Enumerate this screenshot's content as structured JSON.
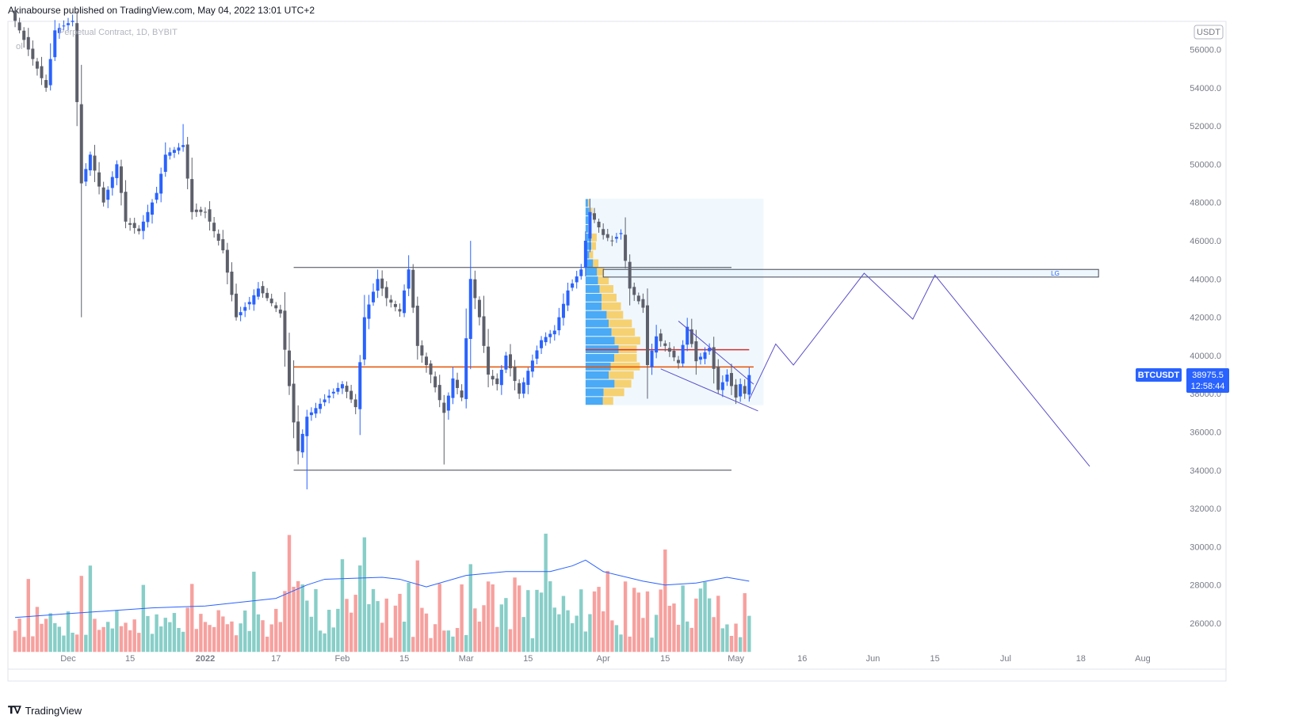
{
  "header": {
    "published_text": "Akinabourse published on TradingView.com, May 04, 2022 13:01 UTC+2"
  },
  "footer": {
    "brand": "TradingView"
  },
  "symbol_legend": {
    "text": "Perpetual Contract, 1D, BYBIT",
    "fragment": "ol"
  },
  "currency_badge": "USDT",
  "price_tag": {
    "symbol": "BTCUSDT",
    "price": "38975.5",
    "countdown": "12:58:44",
    "color": "#2962ff"
  },
  "zone_label": "LG",
  "colors": {
    "up_candle": "#2962ff",
    "down_candle": "#5d606b",
    "volume_up": "#26a69a",
    "volume_down": "#ef5350",
    "volume_ma": "#2962ff",
    "projection": "#5b4fc9",
    "orange_line": "#e65100",
    "red_line": "#d32f2f",
    "grey_line": "#434651",
    "profile_blue": "#2196f3",
    "profile_yellow": "#f7c74f"
  },
  "chart_data": {
    "type": "candlestick",
    "title": "Perpetual Contract, 1D, BYBIT",
    "x_axis": {
      "labels": [
        "Dec",
        "15",
        "2022",
        "17",
        "Feb",
        "15",
        "Mar",
        "15",
        "Apr",
        "15",
        "May",
        "16",
        "Jun",
        "15",
        "Jul",
        "18",
        "Aug"
      ],
      "label_dates": [
        "2021-12-01",
        "2021-12-15",
        "2022-01-01",
        "2022-01-17",
        "2022-02-01",
        "2022-02-15",
        "2022-03-01",
        "2022-03-15",
        "2022-04-01",
        "2022-04-15",
        "2022-05-01",
        "2022-05-16",
        "2022-06-01",
        "2022-06-15",
        "2022-07-01",
        "2022-07-18",
        "2022-08-01"
      ]
    },
    "y_axis": {
      "ticks": [
        "26000.0",
        "28000.0",
        "30000.0",
        "32000.0",
        "34000.0",
        "36000.0",
        "38000.0",
        "40000.0",
        "42000.0",
        "44000.0",
        "46000.0",
        "48000.0",
        "50000.0",
        "52000.0",
        "54000.0",
        "56000.0"
      ],
      "range": [
        25000,
        57500
      ],
      "unit": "USDT"
    },
    "price_path": [
      [
        "2021-11-19",
        57500
      ],
      [
        "2021-11-22",
        56000
      ],
      [
        "2021-11-26",
        54000
      ],
      [
        "2021-11-28",
        57000
      ],
      [
        "2021-12-02",
        57500
      ],
      [
        "2021-12-04",
        49000
      ],
      [
        "2021-12-06",
        50500
      ],
      [
        "2021-12-09",
        48000
      ],
      [
        "2021-12-12",
        50000
      ],
      [
        "2021-12-14",
        47000
      ],
      [
        "2021-12-17",
        46500
      ],
      [
        "2021-12-21",
        48500
      ],
      [
        "2021-12-23",
        50500
      ],
      [
        "2021-12-27",
        51000
      ],
      [
        "2021-12-29",
        47500
      ],
      [
        "2022-01-01",
        47500
      ],
      [
        "2022-01-05",
        45500
      ],
      [
        "2022-01-08",
        42000
      ],
      [
        "2022-01-11",
        42800
      ],
      [
        "2022-01-13",
        43500
      ],
      [
        "2022-01-15",
        43000
      ],
      [
        "2022-01-18",
        42200
      ],
      [
        "2022-01-21",
        36500
      ],
      [
        "2022-01-22",
        35000
      ],
      [
        "2022-01-24",
        36800
      ],
      [
        "2022-01-28",
        37700
      ],
      [
        "2022-02-01",
        38500
      ],
      [
        "2022-02-04",
        37300
      ],
      [
        "2022-02-06",
        42000
      ],
      [
        "2022-02-09",
        44000
      ],
      [
        "2022-02-11",
        43000
      ],
      [
        "2022-02-14",
        42300
      ],
      [
        "2022-02-16",
        44500
      ],
      [
        "2022-02-18",
        40500
      ],
      [
        "2022-02-21",
        39000
      ],
      [
        "2022-02-24",
        37000
      ],
      [
        "2022-02-26",
        38800
      ],
      [
        "2022-02-28",
        37800
      ],
      [
        "2022-03-02",
        44000
      ],
      [
        "2022-03-04",
        42000
      ],
      [
        "2022-03-06",
        39000
      ],
      [
        "2022-03-08",
        38500
      ],
      [
        "2022-03-10",
        40000
      ],
      [
        "2022-03-13",
        38000
      ],
      [
        "2022-03-15",
        39200
      ],
      [
        "2022-03-18",
        40800
      ],
      [
        "2022-03-21",
        41300
      ],
      [
        "2022-03-24",
        43400
      ],
      [
        "2022-03-27",
        44500
      ],
      [
        "2022-03-29",
        47500
      ],
      [
        "2022-04-01",
        46300
      ],
      [
        "2022-04-03",
        46000
      ],
      [
        "2022-04-05",
        46400
      ],
      [
        "2022-04-07",
        43500
      ],
      [
        "2022-04-10",
        42500
      ],
      [
        "2022-04-11",
        39500
      ],
      [
        "2022-04-13",
        41000
      ],
      [
        "2022-04-15",
        40500
      ],
      [
        "2022-04-18",
        39600
      ],
      [
        "2022-04-20",
        41500
      ],
      [
        "2022-04-22",
        39700
      ],
      [
        "2022-04-25",
        40400
      ],
      [
        "2022-04-27",
        38200
      ],
      [
        "2022-04-29",
        39000
      ],
      [
        "2022-05-01",
        37800
      ],
      [
        "2022-05-02",
        38500
      ],
      [
        "2022-05-03",
        38000
      ],
      [
        "2022-05-04",
        38975.5
      ]
    ],
    "volume_ma": [
      [
        "2021-11-19",
        26300
      ],
      [
        "2021-12-01",
        26500
      ],
      [
        "2021-12-20",
        26800
      ],
      [
        "2022-01-01",
        26900
      ],
      [
        "2022-01-17",
        27300
      ],
      [
        "2022-01-24",
        28000
      ],
      [
        "2022-01-28",
        28300
      ],
      [
        "2022-02-10",
        28400
      ],
      [
        "2022-02-14",
        28300
      ],
      [
        "2022-02-20",
        27900
      ],
      [
        "2022-03-01",
        28500
      ],
      [
        "2022-03-10",
        28700
      ],
      [
        "2022-03-20",
        28700
      ],
      [
        "2022-03-25",
        29000
      ],
      [
        "2022-03-28",
        29300
      ],
      [
        "2022-04-01",
        28700
      ],
      [
        "2022-04-10",
        28200
      ],
      [
        "2022-04-15",
        28000
      ],
      [
        "2022-04-22",
        28100
      ],
      [
        "2022-04-29",
        28400
      ],
      [
        "2022-05-04",
        28200
      ]
    ],
    "volume_axis_min": 24500,
    "horizontal_lines": [
      {
        "name": "resistance",
        "price": 44600,
        "from": "2022-01-21",
        "to": "2022-04-30",
        "color": "#434651"
      },
      {
        "name": "support",
        "price": 34000,
        "from": "2022-01-21",
        "to": "2022-04-30",
        "color": "#434651"
      },
      {
        "name": "mid-range",
        "price": 39400,
        "from": "2022-01-21",
        "to": "2022-05-05",
        "color": "#e65100"
      },
      {
        "name": "point-of-control",
        "price": 40300,
        "from": "2022-03-28",
        "to": "2022-05-04",
        "color": "#d32f2f"
      }
    ],
    "zone": {
      "label": "LG",
      "from": "2022-04-01",
      "to": "2022-07-22",
      "low": 44100,
      "high": 44500
    },
    "projection_path": [
      [
        "2022-05-04",
        37700
      ],
      [
        "2022-05-10",
        40600
      ],
      [
        "2022-05-14",
        39500
      ],
      [
        "2022-05-30",
        44300
      ],
      [
        "2022-06-10",
        41900
      ],
      [
        "2022-06-15",
        44200
      ],
      [
        "2022-07-20",
        34200
      ]
    ],
    "wedge_lines": [
      {
        "from": [
          "2022-04-18",
          41800
        ],
        "to": [
          "2022-05-05",
          38500
        ]
      },
      {
        "from": [
          "2022-04-14",
          39300
        ],
        "to": [
          "2022-05-06",
          37100
        ]
      }
    ],
    "volume_profile": {
      "range": {
        "from": "2022-03-28",
        "to": "2022-05-04",
        "low": 37400,
        "high": 48200
      },
      "poc_price": 40300
    }
  }
}
